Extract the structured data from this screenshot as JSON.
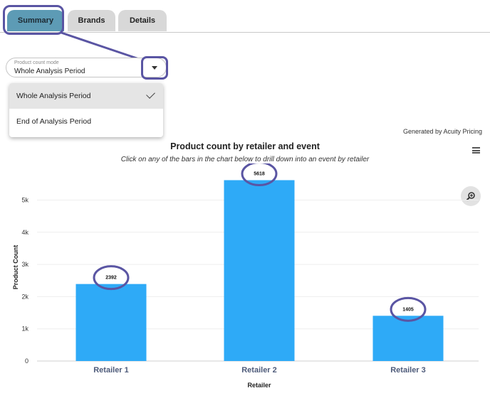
{
  "tabs": [
    {
      "label": "Summary",
      "active": true
    },
    {
      "label": "Brands",
      "active": false
    },
    {
      "label": "Details",
      "active": false
    }
  ],
  "product_count_mode": {
    "label": "Product count mode",
    "value": "Whole Analysis Period",
    "options": [
      {
        "label": "Whole Analysis Period",
        "selected": true
      },
      {
        "label": "End of Analysis Period",
        "selected": false
      }
    ]
  },
  "credit": "Generated by Acuity Pricing",
  "chart_header": {
    "title": "Product count by retailer and event",
    "subtitle": "Click on any of the bars in the chart below to drill down into an event by retailer"
  },
  "icons": {
    "menu": "hamburger-menu-icon",
    "zoom": "zoom-in-icon",
    "caret": "chevron-down-icon",
    "check": "checkmark-icon"
  },
  "colors": {
    "bar": "#2eaaf7",
    "annotation": "#5a55a3",
    "active_tab": "#5d9bb5"
  },
  "chart_data": {
    "type": "bar",
    "title": "Product count by retailer and event",
    "subtitle": "Click on any of the bars in the chart below to drill down into an event by retailer",
    "categories": [
      "Retailer 1",
      "Retailer 2",
      "Retailer 3"
    ],
    "values": [
      2392,
      5618,
      1405
    ],
    "xlabel": "Retailer",
    "ylabel": "Product Count",
    "ylim": [
      0,
      5800
    ],
    "yticks": [
      0,
      1000,
      2000,
      3000,
      4000,
      5000
    ],
    "ytick_labels": [
      "0",
      "1k",
      "2k",
      "3k",
      "4k",
      "5k"
    ],
    "grid": true,
    "legend": "none"
  }
}
